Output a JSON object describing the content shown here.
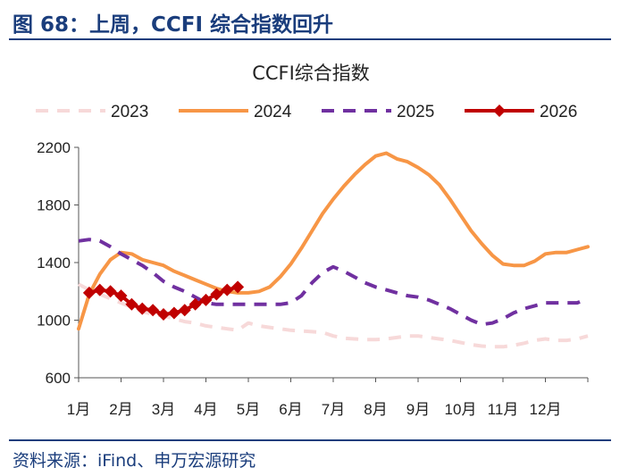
{
  "figure": {
    "title": "图 68：上周，CCFI 综合指数回升",
    "source": "资料来源：iFind、申万宏源研究"
  },
  "chart_data": {
    "type": "line",
    "title": "CCFI综合指数",
    "xlabel": "",
    "ylabel": "",
    "xlim": [
      1,
      13
    ],
    "ylim": [
      600,
      2200
    ],
    "y_ticks": [
      600,
      1000,
      1400,
      1800,
      2200
    ],
    "x_ticks": [
      {
        "label": "1月",
        "x": 1
      },
      {
        "label": "2月",
        "x": 2
      },
      {
        "label": "3月",
        "x": 3
      },
      {
        "label": "4月",
        "x": 4
      },
      {
        "label": "5月",
        "x": 5
      },
      {
        "label": "6月",
        "x": 6
      },
      {
        "label": "7月",
        "x": 7
      },
      {
        "label": "8月",
        "x": 8
      },
      {
        "label": "9月",
        "x": 9
      },
      {
        "label": "10月",
        "x": 10
      },
      {
        "label": "11月",
        "x": 11
      },
      {
        "label": "12月",
        "x": 12
      }
    ],
    "grid": false,
    "legend_position": "top",
    "series": [
      {
        "name": "2023",
        "color": "#f7d9d9",
        "style": "dashed",
        "x": [
          1.0,
          1.25,
          1.5,
          1.75,
          2.0,
          2.25,
          2.5,
          2.75,
          3.0,
          3.25,
          3.5,
          3.75,
          4.0,
          4.25,
          4.5,
          4.75,
          5.0,
          5.25,
          5.5,
          5.75,
          6.0,
          6.25,
          6.5,
          6.75,
          7.0,
          7.25,
          7.5,
          7.75,
          8.0,
          8.25,
          8.5,
          8.75,
          9.0,
          9.25,
          9.5,
          9.75,
          10.0,
          10.25,
          10.5,
          10.75,
          11.0,
          11.25,
          11.5,
          11.75,
          12.0,
          12.25,
          12.5,
          12.75,
          13.0
        ],
        "values": [
          1250,
          1210,
          1180,
          1150,
          1120,
          1090,
          1060,
          1040,
          1030,
          1010,
          990,
          980,
          960,
          950,
          940,
          930,
          980,
          960,
          950,
          940,
          930,
          925,
          920,
          915,
          890,
          875,
          870,
          865,
          865,
          870,
          880,
          890,
          890,
          880,
          870,
          860,
          845,
          830,
          820,
          815,
          815,
          825,
          840,
          860,
          870,
          860,
          860,
          870,
          890
        ]
      },
      {
        "name": "2024",
        "color": "#f79646",
        "style": "solid",
        "x": [
          1.0,
          1.25,
          1.5,
          1.75,
          2.0,
          2.25,
          2.5,
          2.75,
          3.0,
          3.25,
          3.5,
          3.75,
          4.0,
          4.25,
          4.5,
          4.75,
          5.0,
          5.25,
          5.5,
          5.75,
          6.0,
          6.25,
          6.5,
          6.75,
          7.0,
          7.25,
          7.5,
          7.75,
          8.0,
          8.25,
          8.5,
          8.75,
          9.0,
          9.25,
          9.5,
          9.75,
          10.0,
          10.25,
          10.5,
          10.75,
          11.0,
          11.25,
          11.5,
          11.75,
          12.0,
          12.25,
          12.5,
          12.75,
          13.0
        ],
        "values": [
          940,
          1180,
          1320,
          1420,
          1470,
          1460,
          1420,
          1400,
          1380,
          1340,
          1310,
          1280,
          1250,
          1220,
          1200,
          1190,
          1190,
          1200,
          1230,
          1300,
          1390,
          1500,
          1620,
          1740,
          1840,
          1930,
          2010,
          2080,
          2140,
          2160,
          2120,
          2100,
          2060,
          2010,
          1940,
          1840,
          1730,
          1620,
          1530,
          1450,
          1390,
          1380,
          1380,
          1410,
          1460,
          1470,
          1470,
          1490,
          1510
        ]
      },
      {
        "name": "2025",
        "color": "#7030a0",
        "style": "dashed",
        "x": [
          1.0,
          1.25,
          1.5,
          1.75,
          2.0,
          2.25,
          2.5,
          2.75,
          3.0,
          3.25,
          3.5,
          3.75,
          4.0,
          4.25,
          4.5,
          4.75,
          5.0,
          5.25,
          5.5,
          5.75,
          6.0,
          6.25,
          6.5,
          6.75,
          7.0,
          7.25,
          7.5,
          7.75,
          8.0,
          8.25,
          8.5,
          8.75,
          9.0,
          9.25,
          9.5,
          9.75,
          10.0,
          10.25,
          10.5,
          10.75,
          11.0,
          11.25,
          11.5,
          11.75,
          12.0,
          12.25,
          12.5,
          12.75,
          13.0
        ],
        "values": [
          1550,
          1560,
          1550,
          1510,
          1460,
          1420,
          1380,
          1330,
          1270,
          1230,
          1200,
          1160,
          1120,
          1110,
          1110,
          1110,
          1110,
          1110,
          1110,
          1110,
          1120,
          1170,
          1260,
          1330,
          1370,
          1340,
          1300,
          1260,
          1230,
          1210,
          1190,
          1170,
          1160,
          1140,
          1110,
          1080,
          1040,
          1000,
          970,
          980,
          1010,
          1050,
          1080,
          1100,
          1120,
          1120,
          1120,
          1120,
          1150
        ]
      },
      {
        "name": "2026",
        "color": "#c00000",
        "style": "solid-diamond",
        "x": [
          1.25,
          1.5,
          1.75,
          2.0,
          2.25,
          2.5,
          2.75,
          3.0,
          3.25,
          3.5,
          3.75,
          4.0,
          4.25,
          4.5,
          4.75
        ],
        "values": [
          1190,
          1210,
          1200,
          1170,
          1110,
          1080,
          1070,
          1040,
          1050,
          1070,
          1110,
          1140,
          1180,
          1210,
          1230
        ]
      }
    ]
  }
}
